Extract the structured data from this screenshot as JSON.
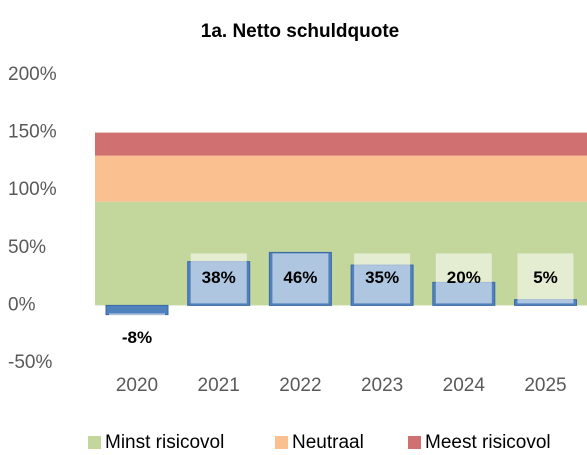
{
  "chart_data": {
    "type": "bar",
    "title": "1a. Netto schuldquote",
    "categories": [
      "2020",
      "2021",
      "2022",
      "2023",
      "2024",
      "2025"
    ],
    "values": [
      -8,
      38,
      46,
      35,
      20,
      5
    ],
    "value_labels": [
      "-8%",
      "38%",
      "46%",
      "35%",
      "20%",
      "5%"
    ],
    "color": "#4f81bd",
    "bands": [
      {
        "name": "Minst risicovol",
        "color": "#c3d69b",
        "value": 90
      },
      {
        "name": "Neutraal",
        "color": "#fac090",
        "value": 40
      },
      {
        "name": "Meest risicovol",
        "color": "#d07070",
        "value": 20
      }
    ],
    "ylim": [
      -50,
      200
    ],
    "yticks": [
      {
        "value": -50,
        "label": "-50%"
      },
      {
        "value": 0,
        "label": "0%"
      },
      {
        "value": 50,
        "label": "50%"
      },
      {
        "value": 100,
        "label": "100%"
      },
      {
        "value": 150,
        "label": "150%"
      },
      {
        "value": 200,
        "label": "200%"
      }
    ],
    "grid": false
  }
}
